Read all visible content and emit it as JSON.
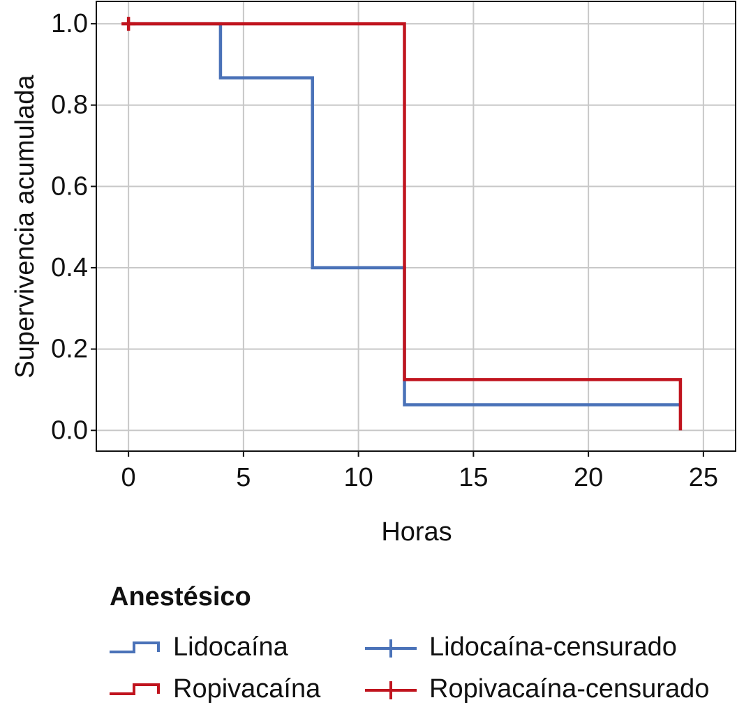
{
  "chart_data": {
    "type": "step",
    "x_label": "Horas",
    "y_label": "Supervivencia acumulada",
    "legend_title": "Anestésico",
    "xlim": [
      -1.4,
      26.4
    ],
    "xticks": [
      0,
      5,
      10,
      15,
      20,
      25
    ],
    "ylim": [
      -0.051,
      1.055
    ],
    "yticks": [
      {
        "value": 0,
        "label": "0.0"
      },
      0.2,
      0.4,
      0.6,
      0.8,
      {
        "value": 1,
        "label": "1.0"
      }
    ],
    "grid": true,
    "series": [
      {
        "name": "Lidocaína",
        "color": "#4a72b8",
        "x": [
          0,
          4,
          8,
          12,
          24
        ],
        "values": [
          1,
          0.867,
          0.4,
          0.063,
          0.063
        ],
        "censored_name": "Lidocaína-censurado",
        "censored_x": [],
        "censored_values": []
      },
      {
        "name": "Ropivacaína",
        "color": "#c0141e",
        "x": [
          0,
          12,
          24
        ],
        "values": [
          1,
          0.125,
          0
        ],
        "censored_name": "Ropivacaína-censurado",
        "censored_x": [
          0
        ],
        "censored_values": [
          1
        ]
      }
    ]
  }
}
